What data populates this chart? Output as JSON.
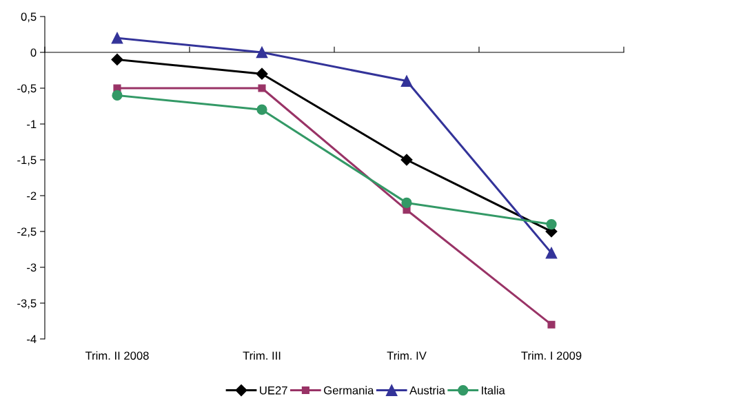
{
  "chart_data": {
    "type": "line",
    "categories": [
      "Trim. II 2008",
      "Trim. III",
      "Trim. IV",
      "Trim. I 2009"
    ],
    "series": [
      {
        "name": "UE27",
        "color": "#000000",
        "marker": "diamond",
        "values": [
          -0.1,
          -0.3,
          -1.5,
          -2.5
        ]
      },
      {
        "name": "Germania",
        "color": "#993366",
        "marker": "square",
        "values": [
          -0.5,
          -0.5,
          -2.2,
          -3.8
        ]
      },
      {
        "name": "Austria",
        "color": "#333399",
        "marker": "triangle",
        "values": [
          0.2,
          0.0,
          -0.4,
          -2.8
        ]
      },
      {
        "name": "Italia",
        "color": "#339966",
        "marker": "circle",
        "values": [
          -0.6,
          -0.8,
          -2.1,
          -2.4
        ]
      }
    ],
    "ylim": [
      -4,
      0.5
    ],
    "yticks": [
      {
        "value": 0.5,
        "label": "0,5"
      },
      0,
      {
        "value": -0.5,
        "label": "-0,5"
      },
      -1,
      {
        "value": -1.5,
        "label": "-1,5"
      },
      -2,
      {
        "value": -2.5,
        "label": "-2,5"
      },
      -3,
      {
        "value": -3.5,
        "label": "-3,5"
      },
      -4
    ],
    "legend": "bottom",
    "line_style": "solid"
  }
}
